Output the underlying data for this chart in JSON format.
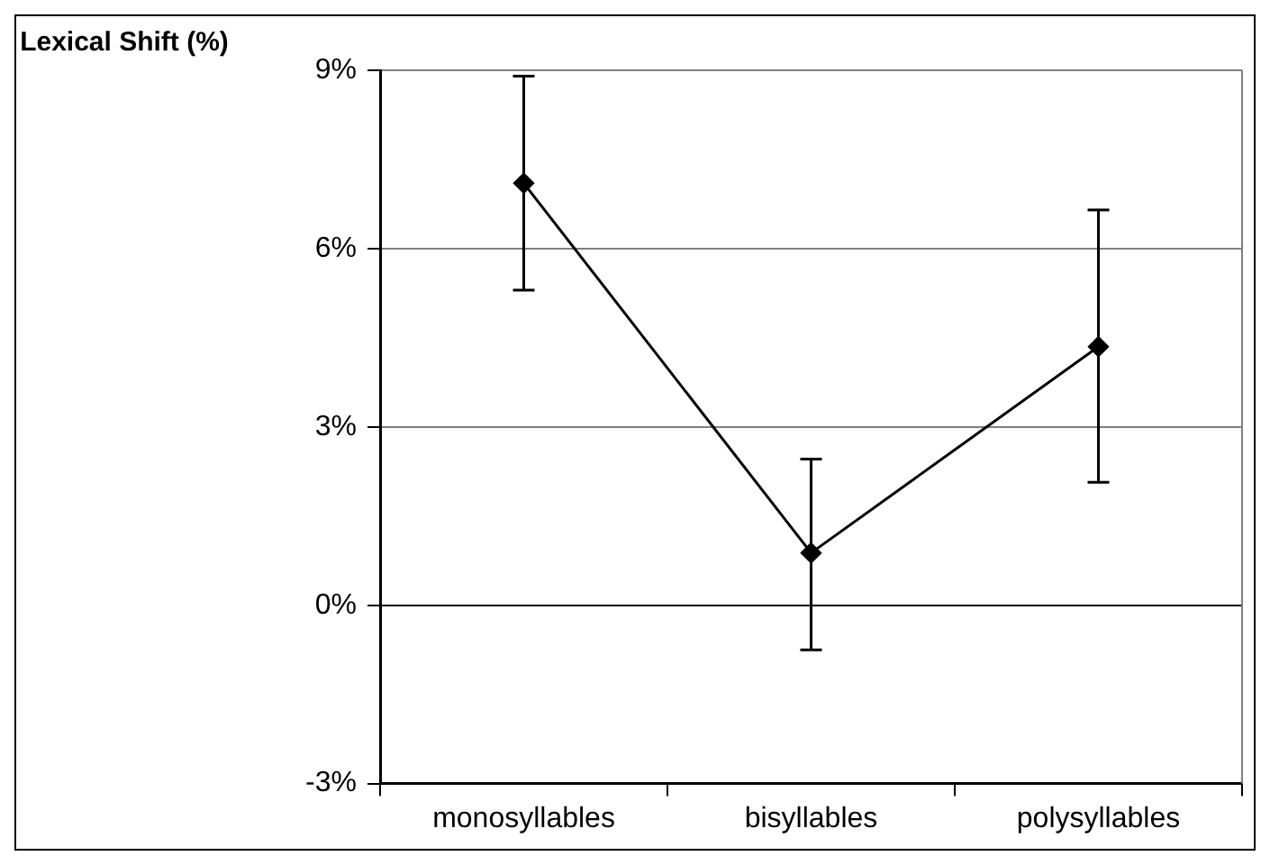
{
  "chart_data": {
    "type": "line",
    "ylabel": "Lexical Shift (%)",
    "categories": [
      "monosyllables",
      "bisyllables",
      "polysyllables"
    ],
    "series": [
      {
        "color": "#000000",
        "values": [
          7.1,
          0.88,
          4.35
        ],
        "errors": [
          [
            5.3,
            8.9
          ],
          [
            -0.75,
            2.46
          ],
          [
            2.07,
            6.65
          ]
        ]
      }
    ],
    "ylim": [
      -3,
      9
    ],
    "yticks": [
      {
        "value": -3,
        "label": "-3%"
      },
      {
        "value": 0,
        "label": "0%"
      },
      {
        "value": 3,
        "label": "3%"
      },
      {
        "value": 6,
        "label": "6%"
      },
      {
        "value": 9,
        "label": "9%"
      }
    ],
    "grid": "y",
    "legend": false,
    "marker": "diamond",
    "line_style": "solid"
  }
}
